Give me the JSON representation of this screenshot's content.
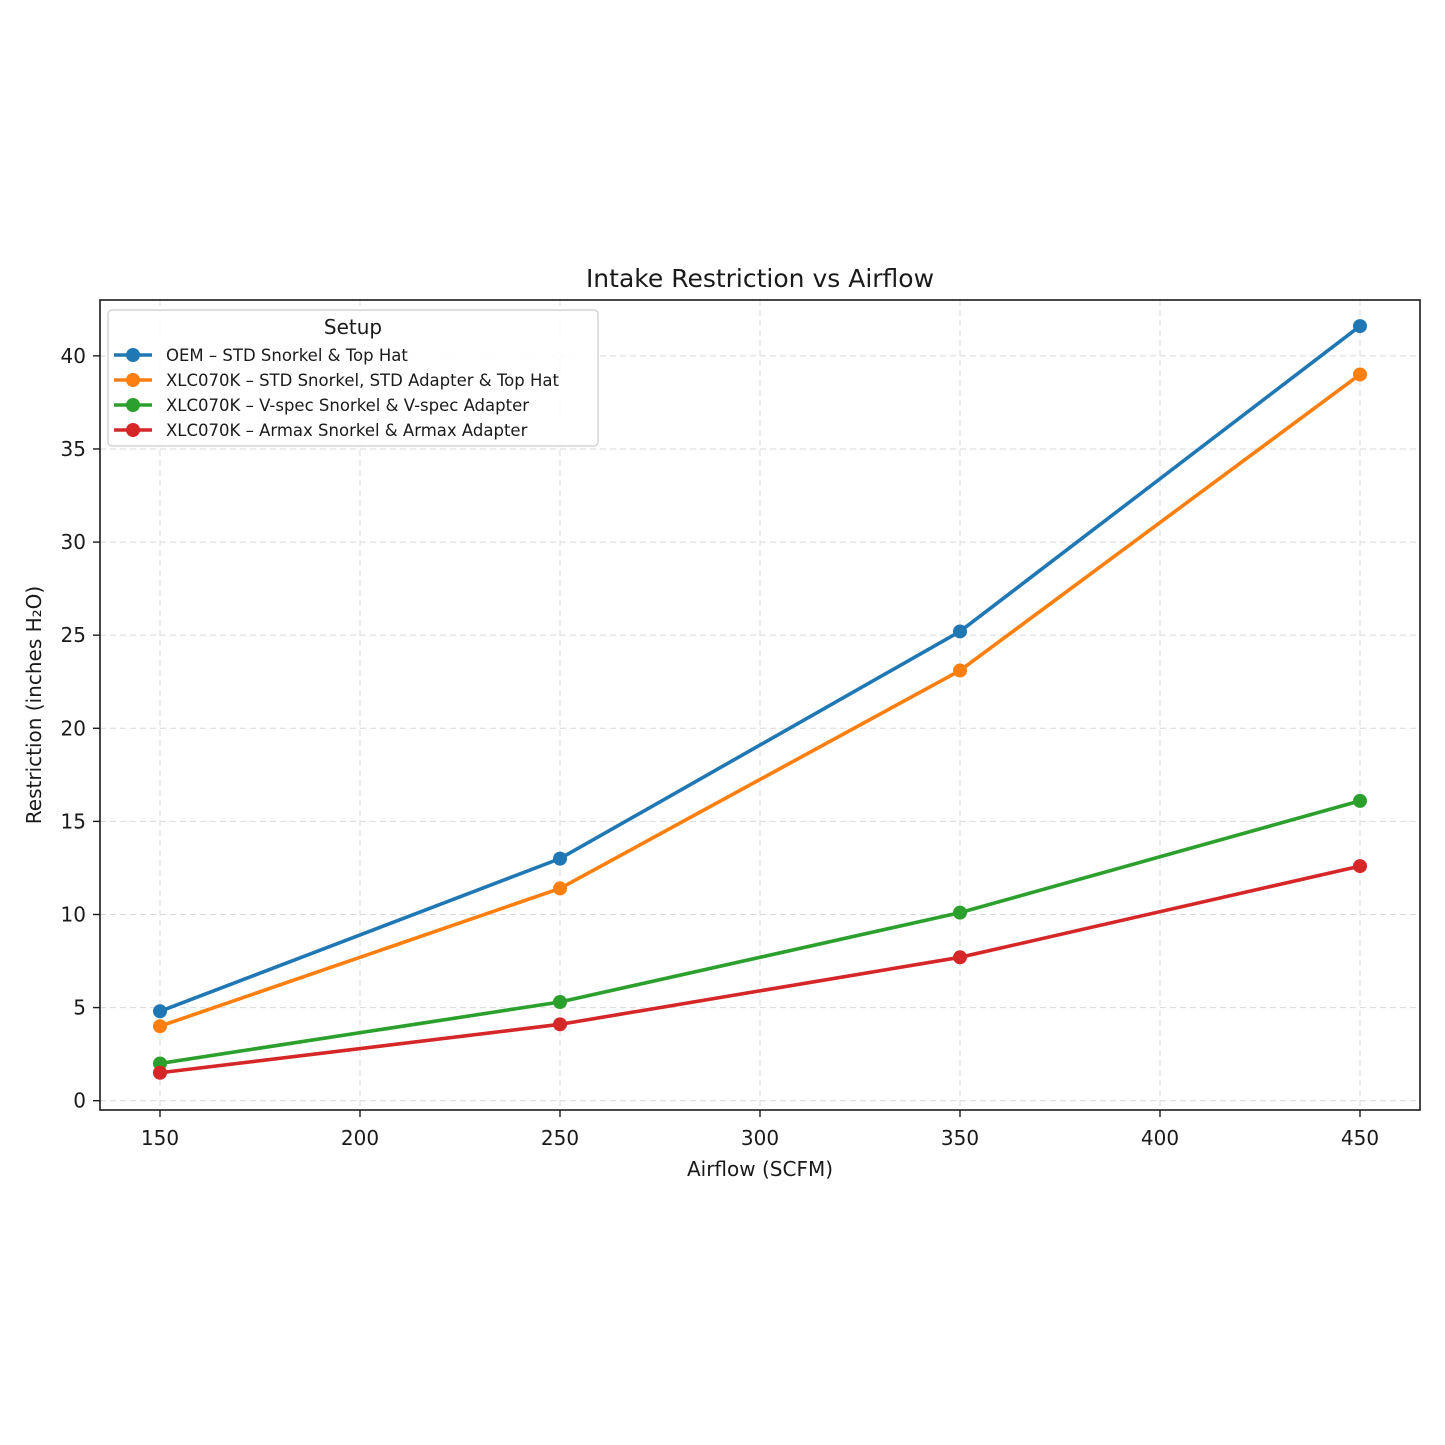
{
  "chart_data": {
    "type": "line",
    "title": "Intake Restriction vs Airflow",
    "xlabel": "Airflow (SCFM)",
    "ylabel": "Restriction (inches H₂O)",
    "x": [
      150,
      250,
      350,
      450
    ],
    "xlim": [
      135,
      465
    ],
    "ylim": [
      -0.5,
      43
    ],
    "xticks": [
      150,
      200,
      250,
      300,
      350,
      400,
      450
    ],
    "yticks": [
      0,
      5,
      10,
      15,
      20,
      25,
      30,
      35,
      40
    ],
    "grid": true,
    "legend": {
      "title": "Setup",
      "placement": "upper-left"
    },
    "series": [
      {
        "name": "OEM – STD Snorkel & Top Hat",
        "color": "#1f77b4",
        "values": [
          4.8,
          13.0,
          25.2,
          41.6
        ]
      },
      {
        "name": "XLC070K – STD Snorkel, STD Adapter & Top Hat",
        "color": "#ff7f0e",
        "values": [
          4.0,
          11.4,
          23.1,
          39.0
        ]
      },
      {
        "name": "XLC070K – V-spec Snorkel & V-spec Adapter",
        "color": "#2ca02c",
        "values": [
          2.0,
          5.3,
          10.1,
          16.1
        ]
      },
      {
        "name": "XLC070K – Armax Snorkel & Armax Adapter",
        "color": "#d62728",
        "values": [
          1.5,
          4.1,
          7.7,
          12.6
        ]
      }
    ]
  }
}
